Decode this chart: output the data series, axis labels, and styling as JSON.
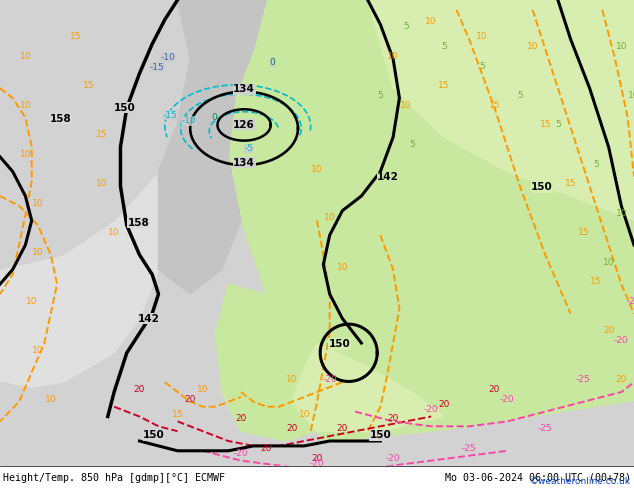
{
  "title_left": "Height/Temp. 850 hPa [gdmp][°C] ECMWF",
  "title_right": "Mo 03-06-2024 06:00 UTC (00+78)",
  "credit": "©weatheronline.co.uk",
  "figsize": [
    6.34,
    4.9
  ],
  "dpi": 100,
  "colors": {
    "land_gray": "#d2d2d2",
    "land_green": "#c8e8a0",
    "land_light_green": "#d8eeB0",
    "sea": "#c8d8e8",
    "black": "#000000",
    "orange": "#ff9900",
    "cyan": "#00bbcc",
    "blue": "#3366cc",
    "red": "#cc0022",
    "pink": "#ff44aa",
    "green_text": "#77aa33",
    "teal": "#008888",
    "white": "#ffffff"
  }
}
